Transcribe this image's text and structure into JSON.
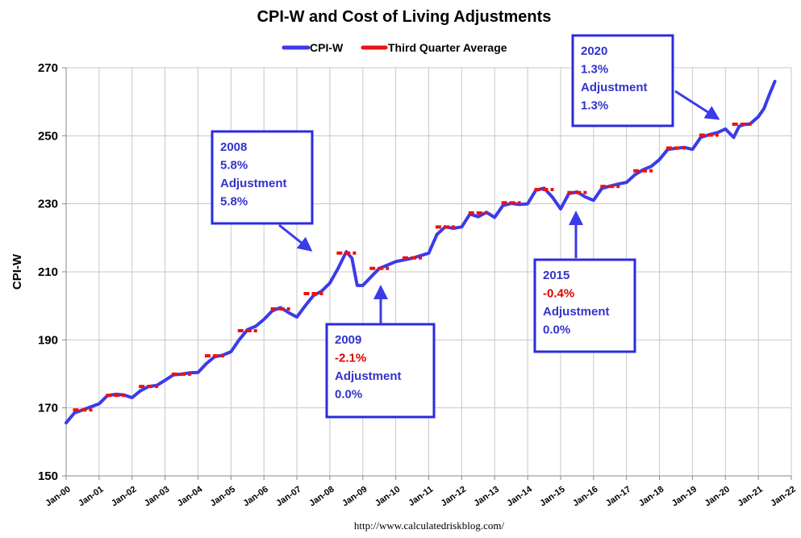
{
  "chart_data": {
    "type": "line",
    "title": "CPI-W and Cost of Living Adjustments",
    "xlabel": "",
    "ylabel": "CPI-W",
    "ylim": [
      150,
      270
    ],
    "yticks": [
      150,
      170,
      190,
      210,
      230,
      250,
      270
    ],
    "xticks": [
      "Jan-00",
      "Jan-01",
      "Jan-02",
      "Jan-03",
      "Jan-04",
      "Jan-05",
      "Jan-06",
      "Jan-07",
      "Jan-08",
      "Jan-09",
      "Jan-10",
      "Jan-11",
      "Jan-12",
      "Jan-13",
      "Jan-14",
      "Jan-15",
      "Jan-16",
      "Jan-17",
      "Jan-18",
      "Jan-19",
      "Jan-20",
      "Jan-21",
      "Jan-22"
    ],
    "xlim": [
      2000.0,
      2022.0
    ],
    "grid": true,
    "legend_position": "top-center",
    "series": [
      {
        "name": "CPI-W",
        "color": "#3b3bea",
        "x": [
          2000.0,
          2000.25,
          2000.5,
          2000.75,
          2001.0,
          2001.25,
          2001.5,
          2001.75,
          2002.0,
          2002.25,
          2002.5,
          2002.75,
          2003.0,
          2003.25,
          2003.5,
          2003.75,
          2004.0,
          2004.25,
          2004.5,
          2004.75,
          2005.0,
          2005.25,
          2005.5,
          2005.75,
          2006.0,
          2006.25,
          2006.5,
          2006.75,
          2007.0,
          2007.25,
          2007.5,
          2007.75,
          2008.0,
          2008.25,
          2008.5,
          2008.67,
          2008.83,
          2009.0,
          2009.25,
          2009.5,
          2009.75,
          2010.0,
          2010.5,
          2011.0,
          2011.25,
          2011.5,
          2011.75,
          2012.0,
          2012.25,
          2012.5,
          2012.75,
          2013.0,
          2013.25,
          2013.5,
          2013.75,
          2014.0,
          2014.25,
          2014.5,
          2014.75,
          2015.0,
          2015.25,
          2015.5,
          2015.75,
          2016.0,
          2016.25,
          2016.5,
          2016.75,
          2017.0,
          2017.25,
          2017.5,
          2017.75,
          2018.0,
          2018.25,
          2018.5,
          2018.75,
          2019.0,
          2019.25,
          2019.5,
          2019.75,
          2020.0,
          2020.25,
          2020.42,
          2020.58,
          2020.75,
          2021.0,
          2021.17,
          2021.33,
          2021.5
        ],
        "values": [
          165.6,
          168.5,
          169.4,
          170.3,
          171.2,
          173.6,
          174.0,
          173.8,
          173.0,
          175.0,
          176.3,
          176.6,
          178.1,
          179.7,
          179.9,
          180.3,
          180.4,
          183.0,
          185.0,
          185.5,
          186.5,
          190.0,
          193.0,
          194.0,
          196.0,
          198.5,
          199.5,
          198.0,
          196.7,
          200.0,
          203.0,
          204.3,
          206.7,
          211.0,
          215.9,
          214.0,
          206.0,
          206.0,
          208.5,
          211.0,
          212.0,
          213.0,
          214.0,
          215.5,
          221.0,
          223.2,
          222.8,
          223.2,
          227.0,
          226.2,
          227.5,
          226.0,
          229.5,
          230.1,
          229.8,
          230.0,
          234.0,
          234.6,
          232.0,
          228.5,
          233.0,
          233.5,
          232.0,
          231.0,
          234.5,
          235.2,
          235.8,
          236.3,
          238.5,
          240.0,
          241.0,
          243.0,
          246.0,
          246.3,
          246.6,
          246.0,
          249.5,
          250.3,
          250.9,
          252.0,
          249.5,
          252.8,
          253.3,
          253.5,
          255.6,
          258.0,
          262.0,
          266.0
        ]
      },
      {
        "name": "Third Quarter Average",
        "color": "#ee1111",
        "segments": [
          [
            2000.5,
            169.4
          ],
          [
            2001.5,
            173.7
          ],
          [
            2002.5,
            176.3
          ],
          [
            2003.5,
            179.9
          ],
          [
            2004.5,
            185.3
          ],
          [
            2005.5,
            192.7
          ],
          [
            2006.5,
            199.1
          ],
          [
            2007.5,
            203.6
          ],
          [
            2008.5,
            215.5
          ],
          [
            2009.5,
            211.0
          ],
          [
            2010.5,
            214.1
          ],
          [
            2011.5,
            223.2
          ],
          [
            2012.5,
            227.3
          ],
          [
            2013.5,
            230.3
          ],
          [
            2014.5,
            234.2
          ],
          [
            2015.5,
            233.3
          ],
          [
            2016.5,
            235.1
          ],
          [
            2017.5,
            239.7
          ],
          [
            2018.5,
            246.4
          ],
          [
            2019.5,
            250.2
          ],
          [
            2020.5,
            253.4
          ]
        ]
      }
    ],
    "annotations": [
      {
        "year": "2008",
        "cpi_change": "5.8%",
        "label": "Adjustment",
        "adjustment": "5.8%",
        "negative": false
      },
      {
        "year": "2009",
        "cpi_change": "-2.1%",
        "label": "Adjustment",
        "adjustment": "0.0%",
        "negative": true
      },
      {
        "year": "2015",
        "cpi_change": "-0.4%",
        "label": "Adjustment",
        "adjustment": "0.0%",
        "negative": true
      },
      {
        "year": "2020",
        "cpi_change": "1.3%",
        "label": "Adjustment",
        "adjustment": "1.3%",
        "negative": false
      }
    ],
    "source": "http://www.calculatedriskblog.com/"
  }
}
